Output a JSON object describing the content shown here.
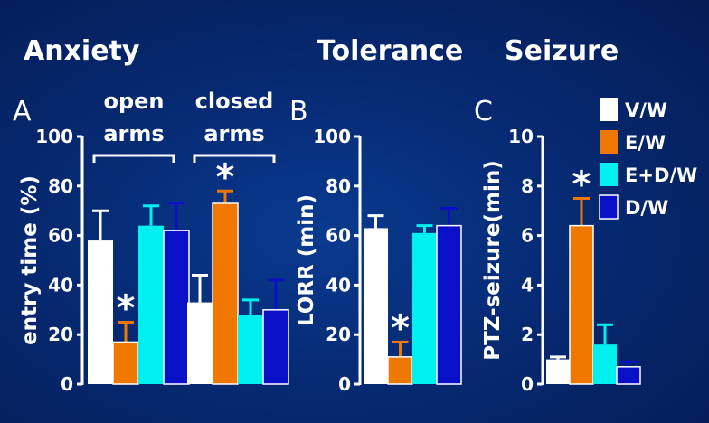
{
  "titles": {
    "anxiety": "Anxiety",
    "tolerance": "Tolerance",
    "seizure": "Seizure"
  },
  "colors": {
    "V/W": "#ffffff",
    "E/W": "#f07800",
    "E+D/W": "#00f0f0",
    "D/W": "#0a10c8",
    "text": "#ffffff",
    "error": "#ffffff"
  },
  "legend": [
    "V/W",
    "E/W",
    "E+D/W",
    "D/W"
  ],
  "chart_data": [
    {
      "type": "bar",
      "panel": "A",
      "title": "Anxiety",
      "ylabel": "entry time (%)",
      "ylim": [
        0,
        100
      ],
      "yticks": [
        0,
        20,
        40,
        60,
        80,
        100
      ],
      "groups": [
        {
          "label": [
            "open",
            "arms"
          ],
          "values": [
            58,
            17,
            64,
            62
          ],
          "errors": [
            12,
            8,
            8,
            11
          ],
          "significant": [
            false,
            true,
            false,
            false
          ]
        },
        {
          "label": [
            "closed",
            "arms"
          ],
          "values": [
            33,
            73,
            28,
            30
          ],
          "errors": [
            11,
            5,
            6,
            12
          ],
          "significant": [
            false,
            true,
            false,
            false
          ]
        }
      ],
      "series": [
        "V/W",
        "E/W",
        "E+D/W",
        "D/W"
      ]
    },
    {
      "type": "bar",
      "panel": "B",
      "title": "Tolerance",
      "ylabel": "LORR (min)",
      "ylim": [
        0,
        100
      ],
      "yticks": [
        0,
        20,
        40,
        60,
        80,
        100
      ],
      "groups": [
        {
          "label": [],
          "values": [
            63,
            11,
            61,
            64
          ],
          "errors": [
            5,
            6,
            3,
            7
          ],
          "significant": [
            false,
            true,
            false,
            false
          ]
        }
      ],
      "series": [
        "V/W",
        "E/W",
        "E+D/W",
        "D/W"
      ]
    },
    {
      "type": "bar",
      "panel": "C",
      "title": "Seizure",
      "ylabel": "PTZ-seizure(min)",
      "ylim": [
        0,
        10
      ],
      "yticks": [
        0,
        2,
        4,
        6,
        8,
        10
      ],
      "groups": [
        {
          "label": [],
          "values": [
            1.0,
            6.4,
            1.6,
            0.7
          ],
          "errors": [
            0.1,
            1.1,
            0.8,
            0.2
          ],
          "significant": [
            false,
            true,
            false,
            false
          ]
        }
      ],
      "series": [
        "V/W",
        "E/W",
        "E+D/W",
        "D/W"
      ]
    }
  ]
}
